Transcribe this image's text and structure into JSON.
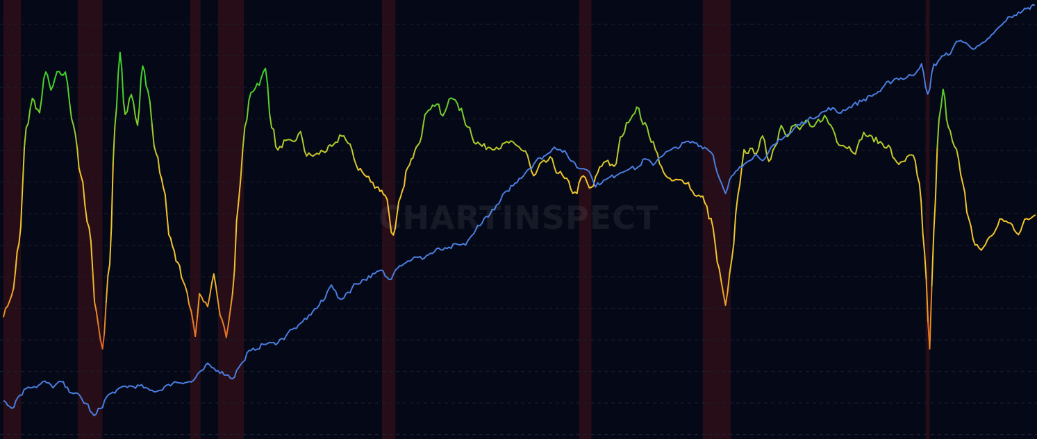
{
  "watermark": "CHARTINSPECT",
  "colors": {
    "background": "#050816",
    "grid": "#1a2030",
    "recession": "#2a0e18",
    "index_line": "#4a7ee0",
    "oscillator_high": "#3fd22a",
    "oscillator_mid": "#f2c52c",
    "oscillator_low": "#d8321c"
  },
  "chart_data": {
    "type": "line",
    "title": "",
    "xlabel": "",
    "ylabel": "",
    "grid": true,
    "legend": "none",
    "x_range": [
      0,
      100
    ],
    "recessions": [
      [
        0,
        1.7
      ],
      [
        7.2,
        9.6
      ],
      [
        18.1,
        19.1
      ],
      [
        20.8,
        23.3
      ],
      [
        36.7,
        38.0
      ],
      [
        55.8,
        57.0
      ],
      [
        67.8,
        70.5
      ],
      [
        89.4,
        89.8
      ]
    ],
    "series": [
      {
        "name": "",
        "color_scale": "oscillator",
        "ylim": [
          0,
          100
        ],
        "points": [
          [
            0,
            28
          ],
          [
            0.8,
            32
          ],
          [
            1.5,
            44
          ],
          [
            2.2,
            71
          ],
          [
            2.8,
            78
          ],
          [
            3.5,
            75
          ],
          [
            4.1,
            85
          ],
          [
            4.6,
            80
          ],
          [
            5.2,
            84
          ],
          [
            6.0,
            84
          ],
          [
            6.8,
            72
          ],
          [
            7.5,
            60
          ],
          [
            8.3,
            48
          ],
          [
            9.0,
            28
          ],
          [
            9.6,
            20
          ],
          [
            10.3,
            40
          ],
          [
            10.8,
            72
          ],
          [
            11.3,
            89
          ],
          [
            11.8,
            74
          ],
          [
            12.4,
            79
          ],
          [
            13.0,
            72
          ],
          [
            13.5,
            86
          ],
          [
            14.0,
            80
          ],
          [
            14.8,
            65
          ],
          [
            15.5,
            58
          ],
          [
            16.2,
            45
          ],
          [
            16.9,
            40
          ],
          [
            17.6,
            34
          ],
          [
            18.2,
            28
          ],
          [
            18.6,
            23
          ],
          [
            19.0,
            33
          ],
          [
            19.8,
            30
          ],
          [
            20.4,
            37
          ],
          [
            21.0,
            28
          ],
          [
            21.6,
            23
          ],
          [
            22.2,
            32
          ],
          [
            22.8,
            55
          ],
          [
            23.4,
            71
          ],
          [
            24.0,
            80
          ],
          [
            24.8,
            82
          ],
          [
            25.4,
            85
          ],
          [
            26.0,
            72
          ],
          [
            26.6,
            66
          ],
          [
            27.2,
            68
          ],
          [
            28.0,
            68
          ],
          [
            28.8,
            70
          ],
          [
            29.4,
            65
          ],
          [
            30.2,
            65
          ],
          [
            31.0,
            66
          ],
          [
            32.0,
            67
          ],
          [
            32.8,
            70
          ],
          [
            33.6,
            67
          ],
          [
            34.4,
            62
          ],
          [
            35.2,
            60
          ],
          [
            36.0,
            58
          ],
          [
            37.0,
            56
          ],
          [
            37.8,
            46
          ],
          [
            38.5,
            55
          ],
          [
            39.2,
            62
          ],
          [
            40.2,
            68
          ],
          [
            41.2,
            76
          ],
          [
            42.0,
            77
          ],
          [
            42.6,
            74
          ],
          [
            43.4,
            79
          ],
          [
            44.2,
            76
          ],
          [
            45.0,
            72
          ],
          [
            45.8,
            68
          ],
          [
            46.6,
            67
          ],
          [
            47.4,
            67
          ],
          [
            48.2,
            67
          ],
          [
            49.0,
            68
          ],
          [
            49.8,
            67
          ],
          [
            50.6,
            66
          ],
          [
            51.4,
            60
          ],
          [
            52.2,
            63
          ],
          [
            53.0,
            64
          ],
          [
            53.8,
            61
          ],
          [
            54.6,
            59
          ],
          [
            55.4,
            56
          ],
          [
            56.2,
            60
          ],
          [
            57.0,
            57
          ],
          [
            57.8,
            62
          ],
          [
            58.4,
            64
          ],
          [
            59.2,
            62
          ],
          [
            60.0,
            70
          ],
          [
            60.8,
            74
          ],
          [
            61.4,
            76
          ],
          [
            62.2,
            72
          ],
          [
            63.0,
            68
          ],
          [
            63.8,
            62
          ],
          [
            64.6,
            59
          ],
          [
            65.4,
            59
          ],
          [
            66.2,
            59
          ],
          [
            67.0,
            56
          ],
          [
            67.8,
            55
          ],
          [
            68.6,
            50
          ],
          [
            69.4,
            38
          ],
          [
            70.0,
            30
          ],
          [
            70.6,
            40
          ],
          [
            71.2,
            55
          ],
          [
            71.8,
            66
          ],
          [
            72.4,
            66
          ],
          [
            73.0,
            66
          ],
          [
            73.6,
            69
          ],
          [
            74.2,
            64
          ],
          [
            74.8,
            67
          ],
          [
            75.4,
            72
          ],
          [
            76.0,
            70
          ],
          [
            76.6,
            72
          ],
          [
            77.2,
            71
          ],
          [
            77.8,
            73
          ],
          [
            78.4,
            71
          ],
          [
            79.0,
            73
          ],
          [
            79.6,
            74
          ],
          [
            80.2,
            72
          ],
          [
            81.0,
            68
          ],
          [
            81.8,
            67
          ],
          [
            82.6,
            66
          ],
          [
            83.4,
            70
          ],
          [
            84.2,
            69
          ],
          [
            85.0,
            68
          ],
          [
            85.8,
            67
          ],
          [
            86.6,
            63
          ],
          [
            87.4,
            64
          ],
          [
            88.2,
            65
          ],
          [
            88.8,
            58
          ],
          [
            89.3,
            42
          ],
          [
            89.8,
            20
          ],
          [
            90.2,
            48
          ],
          [
            90.7,
            73
          ],
          [
            91.1,
            80
          ],
          [
            91.6,
            72
          ],
          [
            92.4,
            66
          ],
          [
            93.0,
            58
          ],
          [
            93.6,
            50
          ],
          [
            94.2,
            44
          ],
          [
            94.8,
            43
          ],
          [
            95.4,
            45
          ],
          [
            96.0,
            47
          ],
          [
            96.8,
            50
          ],
          [
            97.6,
            49
          ],
          [
            98.4,
            47
          ],
          [
            99.2,
            50
          ],
          [
            100,
            51
          ]
        ]
      },
      {
        "name": "",
        "color_scale": "none",
        "ylim": [
          0,
          100
        ],
        "points": [
          [
            0,
            8
          ],
          [
            0.8,
            6
          ],
          [
            1.6,
            9
          ],
          [
            2.4,
            11
          ],
          [
            3.2,
            11
          ],
          [
            4.0,
            12
          ],
          [
            4.8,
            11
          ],
          [
            5.6,
            12
          ],
          [
            6.4,
            10
          ],
          [
            7.2,
            9
          ],
          [
            8.0,
            7
          ],
          [
            8.8,
            4
          ],
          [
            9.4,
            6
          ],
          [
            10.2,
            9
          ],
          [
            11.0,
            10
          ],
          [
            11.8,
            11
          ],
          [
            12.6,
            11
          ],
          [
            13.4,
            11
          ],
          [
            14.2,
            10
          ],
          [
            15.0,
            10
          ],
          [
            15.8,
            11
          ],
          [
            16.6,
            12
          ],
          [
            17.4,
            12
          ],
          [
            18.2,
            12
          ],
          [
            19.0,
            14
          ],
          [
            19.8,
            16
          ],
          [
            20.6,
            15
          ],
          [
            21.4,
            14
          ],
          [
            22.2,
            13
          ],
          [
            23.0,
            16
          ],
          [
            23.8,
            19
          ],
          [
            24.6,
            20
          ],
          [
            25.4,
            21
          ],
          [
            26.2,
            21
          ],
          [
            27.0,
            22
          ],
          [
            27.8,
            24
          ],
          [
            28.6,
            25
          ],
          [
            29.4,
            27
          ],
          [
            30.2,
            29
          ],
          [
            31.0,
            31
          ],
          [
            31.8,
            35
          ],
          [
            32.2,
            33
          ],
          [
            32.6,
            31
          ],
          [
            33.4,
            33
          ],
          [
            34.2,
            35
          ],
          [
            35.0,
            36
          ],
          [
            35.8,
            37
          ],
          [
            36.6,
            38
          ],
          [
            37.4,
            36
          ],
          [
            38.2,
            39
          ],
          [
            39.0,
            40
          ],
          [
            39.8,
            41
          ],
          [
            40.6,
            41
          ],
          [
            41.4,
            42
          ],
          [
            42.2,
            43
          ],
          [
            43.0,
            43
          ],
          [
            43.8,
            44
          ],
          [
            44.6,
            44
          ],
          [
            45.4,
            46
          ],
          [
            46.2,
            49
          ],
          [
            47.0,
            51
          ],
          [
            47.8,
            53
          ],
          [
            48.6,
            56
          ],
          [
            49.4,
            58
          ],
          [
            50.2,
            60
          ],
          [
            51.0,
            62
          ],
          [
            51.8,
            64
          ],
          [
            52.6,
            65
          ],
          [
            53.4,
            67
          ],
          [
            54.2,
            66
          ],
          [
            55.0,
            64
          ],
          [
            55.8,
            62
          ],
          [
            56.6,
            62
          ],
          [
            57.4,
            58
          ],
          [
            58.2,
            59
          ],
          [
            59.0,
            60
          ],
          [
            59.8,
            61
          ],
          [
            60.6,
            62
          ],
          [
            61.4,
            62
          ],
          [
            62.2,
            64
          ],
          [
            63.0,
            63
          ],
          [
            63.8,
            65
          ],
          [
            64.6,
            66
          ],
          [
            65.4,
            67
          ],
          [
            66.2,
            68
          ],
          [
            67.0,
            68
          ],
          [
            67.8,
            67
          ],
          [
            68.6,
            66
          ],
          [
            69.4,
            60
          ],
          [
            70.0,
            56
          ],
          [
            70.6,
            60
          ],
          [
            71.4,
            62
          ],
          [
            72.2,
            64
          ],
          [
            73.0,
            65
          ],
          [
            73.8,
            64
          ],
          [
            74.6,
            67
          ],
          [
            75.4,
            69
          ],
          [
            76.2,
            70
          ],
          [
            77.0,
            72
          ],
          [
            77.8,
            73
          ],
          [
            78.6,
            74
          ],
          [
            79.4,
            75
          ],
          [
            80.2,
            76
          ],
          [
            81.0,
            75
          ],
          [
            81.8,
            76
          ],
          [
            82.6,
            77
          ],
          [
            83.4,
            78
          ],
          [
            84.2,
            79
          ],
          [
            85.0,
            80
          ],
          [
            85.8,
            82
          ],
          [
            86.6,
            83
          ],
          [
            87.4,
            83
          ],
          [
            88.2,
            84
          ],
          [
            89.0,
            86
          ],
          [
            89.6,
            79
          ],
          [
            90.2,
            86
          ],
          [
            91.0,
            88
          ],
          [
            91.8,
            89
          ],
          [
            92.6,
            92
          ],
          [
            93.4,
            91
          ],
          [
            94.2,
            90
          ],
          [
            95.0,
            91
          ],
          [
            95.8,
            93
          ],
          [
            96.6,
            95
          ],
          [
            97.4,
            97
          ],
          [
            98.2,
            98
          ],
          [
            99.0,
            99
          ],
          [
            100,
            100
          ]
        ]
      }
    ]
  }
}
